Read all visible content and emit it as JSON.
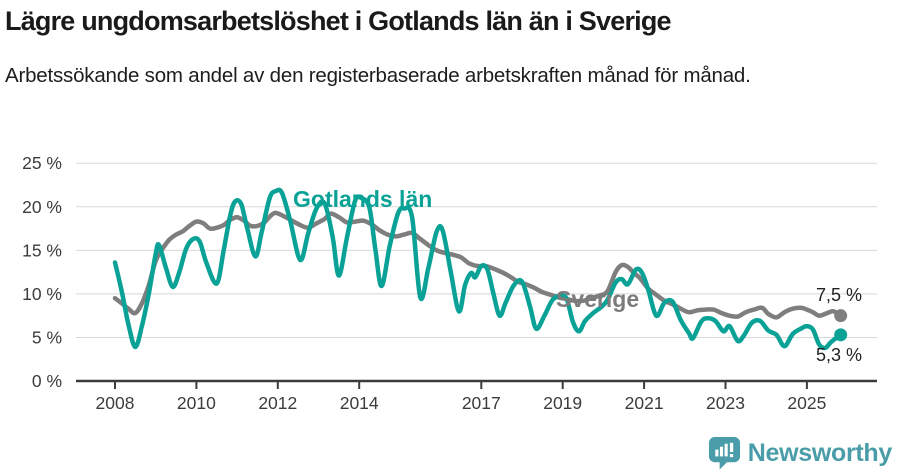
{
  "header": {
    "title": "Lägre ungdomsarbetslöshet i Gotlands län än i Sverige",
    "subtitle": "Arbetssökande som andel av den registerbaserade arbetskraften månad för månad."
  },
  "footer": {
    "brand": "Newsworthy",
    "brand_color": "#4A9DA8",
    "logo_icon": "newsworthy-speech-bubble-bar-chart-icon"
  },
  "chart_data": {
    "type": "line",
    "grid": true,
    "x_range": [
      2008,
      2025.83
    ],
    "ylim": [
      0,
      25
    ],
    "colors": {
      "gotland": "#0AA296",
      "sverige": "#7E7E7E",
      "grid": "#D8D8D8",
      "axis": "#3C3C3C",
      "text": "#1A1A1A"
    },
    "y_ticks": [
      {
        "value": 25,
        "label": "25 %"
      },
      {
        "value": 20,
        "label": "20 %"
      },
      {
        "value": 15,
        "label": "15 %"
      },
      {
        "value": 10,
        "label": "10 %"
      },
      {
        "value": 5,
        "label": "5 %"
      },
      {
        "value": 0,
        "label": "0 %"
      }
    ],
    "x_ticks": [
      {
        "year": 2008,
        "label": "2008"
      },
      {
        "year": 2010,
        "label": "2010"
      },
      {
        "year": 2012,
        "label": "2012"
      },
      {
        "year": 2014,
        "label": "2014"
      },
      {
        "year": 2017,
        "label": "2017"
      },
      {
        "year": 2019,
        "label": "2019"
      },
      {
        "year": 2021,
        "label": "2021"
      },
      {
        "year": 2023,
        "label": "2023"
      },
      {
        "year": 2025,
        "label": "2025"
      }
    ],
    "series": [
      {
        "name": "Sverige",
        "color": "#7E7E7E",
        "end_label": "7,5 %",
        "end_value": 7.5,
        "points": [
          [
            2008.0,
            9.5
          ],
          [
            2008.17,
            8.9
          ],
          [
            2008.33,
            8.3
          ],
          [
            2008.5,
            7.8
          ],
          [
            2008.67,
            9.0
          ],
          [
            2008.83,
            11.0
          ],
          [
            2009.0,
            13.8
          ],
          [
            2009.17,
            15.2
          ],
          [
            2009.33,
            16.2
          ],
          [
            2009.5,
            16.8
          ],
          [
            2009.67,
            17.2
          ],
          [
            2009.83,
            17.8
          ],
          [
            2010.0,
            18.3
          ],
          [
            2010.17,
            18.1
          ],
          [
            2010.33,
            17.5
          ],
          [
            2010.5,
            17.6
          ],
          [
            2010.67,
            17.9
          ],
          [
            2010.83,
            18.5
          ],
          [
            2011.0,
            18.8
          ],
          [
            2011.17,
            18.4
          ],
          [
            2011.33,
            17.8
          ],
          [
            2011.5,
            17.8
          ],
          [
            2011.67,
            18.2
          ],
          [
            2011.83,
            19.0
          ],
          [
            2011.95,
            19.3
          ],
          [
            2012.15,
            18.9
          ],
          [
            2012.35,
            18.4
          ],
          [
            2012.55,
            17.9
          ],
          [
            2012.75,
            17.6
          ],
          [
            2012.95,
            18.1
          ],
          [
            2013.15,
            18.6
          ],
          [
            2013.3,
            19.2
          ],
          [
            2013.5,
            18.8
          ],
          [
            2013.7,
            18.2
          ],
          [
            2013.9,
            18.3
          ],
          [
            2014.1,
            18.4
          ],
          [
            2014.3,
            18.0
          ],
          [
            2014.5,
            17.3
          ],
          [
            2014.7,
            16.8
          ],
          [
            2014.9,
            16.6
          ],
          [
            2015.1,
            16.8
          ],
          [
            2015.3,
            17.0
          ],
          [
            2015.5,
            16.3
          ],
          [
            2015.7,
            15.6
          ],
          [
            2015.9,
            15.0
          ],
          [
            2016.1,
            14.7
          ],
          [
            2016.3,
            14.5
          ],
          [
            2016.5,
            14.2
          ],
          [
            2016.7,
            13.5
          ],
          [
            2016.9,
            13.2
          ],
          [
            2017.1,
            13.2
          ],
          [
            2017.3,
            12.9
          ],
          [
            2017.5,
            12.5
          ],
          [
            2017.7,
            12.0
          ],
          [
            2017.9,
            11.4
          ],
          [
            2018.1,
            11.1
          ],
          [
            2018.3,
            10.7
          ],
          [
            2018.5,
            10.2
          ],
          [
            2018.7,
            9.9
          ],
          [
            2018.9,
            9.6
          ],
          [
            2019.1,
            9.4
          ],
          [
            2019.3,
            9.2
          ],
          [
            2019.5,
            9.2
          ],
          [
            2019.7,
            9.5
          ],
          [
            2019.9,
            9.8
          ],
          [
            2020.1,
            10.3
          ],
          [
            2020.3,
            12.5
          ],
          [
            2020.45,
            13.3
          ],
          [
            2020.6,
            13.1
          ],
          [
            2020.75,
            12.4
          ],
          [
            2020.9,
            11.8
          ],
          [
            2021.1,
            10.6
          ],
          [
            2021.3,
            9.9
          ],
          [
            2021.5,
            9.2
          ],
          [
            2021.7,
            8.8
          ],
          [
            2021.9,
            8.3
          ],
          [
            2022.1,
            7.9
          ],
          [
            2022.3,
            8.1
          ],
          [
            2022.5,
            8.2
          ],
          [
            2022.7,
            8.2
          ],
          [
            2022.9,
            7.8
          ],
          [
            2023.1,
            7.5
          ],
          [
            2023.3,
            7.4
          ],
          [
            2023.5,
            7.9
          ],
          [
            2023.7,
            8.2
          ],
          [
            2023.9,
            8.4
          ],
          [
            2024.05,
            7.7
          ],
          [
            2024.25,
            7.3
          ],
          [
            2024.45,
            7.9
          ],
          [
            2024.65,
            8.3
          ],
          [
            2024.85,
            8.4
          ],
          [
            2025.0,
            8.2
          ],
          [
            2025.15,
            7.9
          ],
          [
            2025.3,
            7.5
          ],
          [
            2025.5,
            7.8
          ],
          [
            2025.65,
            8.0
          ],
          [
            2025.83,
            7.5
          ]
        ]
      },
      {
        "name": "Gotlands län",
        "color": "#0AA296",
        "end_label": "5,3 %",
        "end_value": 5.3,
        "points": [
          [
            2008.0,
            13.6
          ],
          [
            2008.17,
            10.2
          ],
          [
            2008.33,
            6.5
          ],
          [
            2008.5,
            3.9
          ],
          [
            2008.67,
            6.5
          ],
          [
            2008.83,
            10.0
          ],
          [
            2009.0,
            14.6
          ],
          [
            2009.08,
            15.6
          ],
          [
            2009.25,
            13.0
          ],
          [
            2009.42,
            10.8
          ],
          [
            2009.58,
            12.5
          ],
          [
            2009.75,
            15.2
          ],
          [
            2009.92,
            16.3
          ],
          [
            2010.08,
            16.0
          ],
          [
            2010.25,
            13.5
          ],
          [
            2010.5,
            11.2
          ],
          [
            2010.67,
            15.0
          ],
          [
            2010.83,
            19.0
          ],
          [
            2010.95,
            20.6
          ],
          [
            2011.1,
            20.3
          ],
          [
            2011.25,
            17.5
          ],
          [
            2011.45,
            14.3
          ],
          [
            2011.6,
            17.0
          ],
          [
            2011.8,
            21.0
          ],
          [
            2011.95,
            21.8
          ],
          [
            2012.1,
            21.6
          ],
          [
            2012.3,
            18.5
          ],
          [
            2012.55,
            13.9
          ],
          [
            2012.75,
            17.0
          ],
          [
            2012.95,
            19.8
          ],
          [
            2013.15,
            20.4
          ],
          [
            2013.35,
            16.5
          ],
          [
            2013.5,
            12.1
          ],
          [
            2013.7,
            16.5
          ],
          [
            2013.9,
            20.7
          ],
          [
            2014.05,
            21.0
          ],
          [
            2014.25,
            19.9
          ],
          [
            2014.4,
            15.0
          ],
          [
            2014.55,
            10.9
          ],
          [
            2014.75,
            15.5
          ],
          [
            2014.95,
            19.2
          ],
          [
            2015.1,
            19.8
          ],
          [
            2015.3,
            18.8
          ],
          [
            2015.5,
            9.6
          ],
          [
            2015.7,
            13.0
          ],
          [
            2015.9,
            17.1
          ],
          [
            2016.05,
            17.3
          ],
          [
            2016.25,
            12.5
          ],
          [
            2016.45,
            8.0
          ],
          [
            2016.6,
            11.0
          ],
          [
            2016.75,
            12.4
          ],
          [
            2016.85,
            11.9
          ],
          [
            2017.0,
            13.2
          ],
          [
            2017.15,
            12.8
          ],
          [
            2017.3,
            10.0
          ],
          [
            2017.45,
            7.5
          ],
          [
            2017.6,
            9.0
          ],
          [
            2017.8,
            11.0
          ],
          [
            2018.0,
            11.4
          ],
          [
            2018.2,
            8.5
          ],
          [
            2018.35,
            6.0
          ],
          [
            2018.55,
            7.5
          ],
          [
            2018.75,
            9.3
          ],
          [
            2018.95,
            9.8
          ],
          [
            2019.1,
            9.4
          ],
          [
            2019.25,
            6.8
          ],
          [
            2019.4,
            5.7
          ],
          [
            2019.55,
            6.9
          ],
          [
            2019.75,
            7.8
          ],
          [
            2019.95,
            8.5
          ],
          [
            2020.1,
            9.3
          ],
          [
            2020.3,
            11.3
          ],
          [
            2020.45,
            11.7
          ],
          [
            2020.6,
            11.1
          ],
          [
            2020.8,
            12.8
          ],
          [
            2020.95,
            12.4
          ],
          [
            2021.1,
            10.5
          ],
          [
            2021.3,
            7.5
          ],
          [
            2021.5,
            9.0
          ],
          [
            2021.7,
            9.1
          ],
          [
            2021.9,
            7.0
          ],
          [
            2022.1,
            5.5
          ],
          [
            2022.2,
            4.9
          ],
          [
            2022.4,
            6.8
          ],
          [
            2022.55,
            7.2
          ],
          [
            2022.75,
            6.9
          ],
          [
            2022.95,
            5.7
          ],
          [
            2023.1,
            6.3
          ],
          [
            2023.3,
            4.6
          ],
          [
            2023.45,
            5.2
          ],
          [
            2023.65,
            6.7
          ],
          [
            2023.85,
            6.9
          ],
          [
            2024.05,
            5.8
          ],
          [
            2024.25,
            5.3
          ],
          [
            2024.45,
            4.0
          ],
          [
            2024.65,
            5.4
          ],
          [
            2024.85,
            6.0
          ],
          [
            2025.0,
            6.3
          ],
          [
            2025.15,
            5.9
          ],
          [
            2025.3,
            4.2
          ],
          [
            2025.45,
            3.8
          ],
          [
            2025.6,
            4.5
          ],
          [
            2025.83,
            5.3
          ]
        ]
      }
    ]
  }
}
